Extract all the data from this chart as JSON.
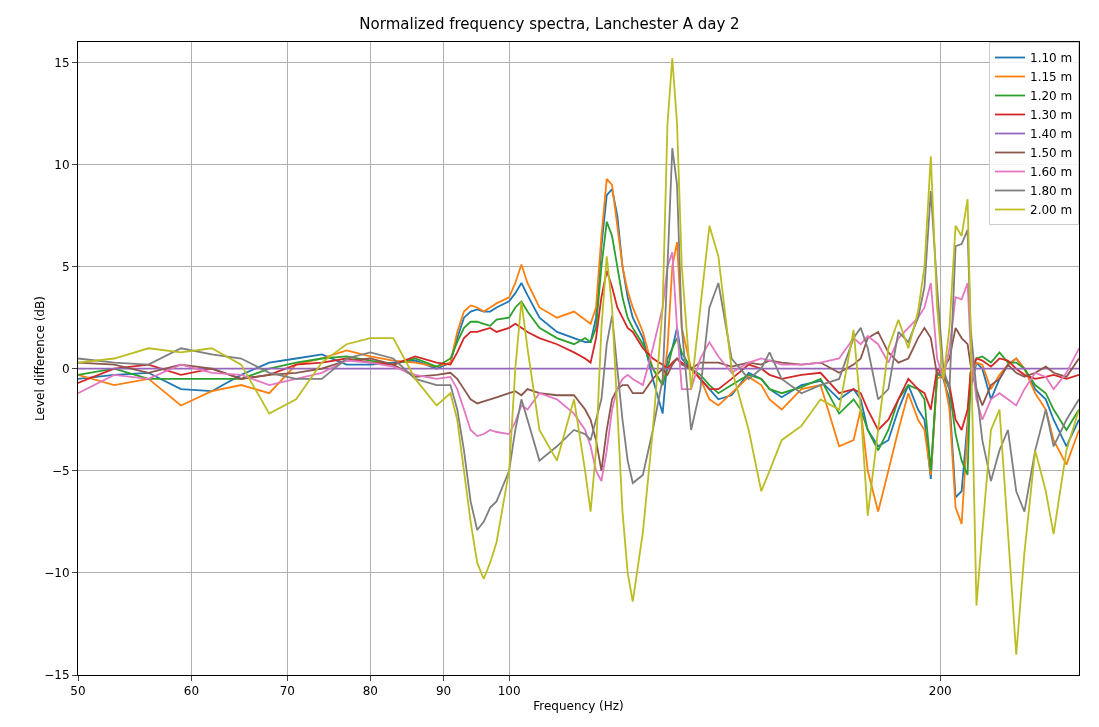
{
  "chart_data": {
    "type": "line",
    "title": "Normalized frequency spectra, Lanchester A day 2",
    "xlabel": "Frequency (Hz)",
    "ylabel": "Level difference (dB)",
    "x": [
      50,
      53,
      56,
      59,
      62,
      65,
      68,
      71,
      74,
      77,
      80,
      83,
      86,
      89,
      91,
      92,
      93,
      94,
      95,
      96,
      97,
      98,
      100,
      101,
      102,
      103,
      105,
      108,
      111,
      113,
      114,
      115,
      116,
      117,
      118,
      119,
      120,
      121,
      122,
      124,
      126,
      128,
      129,
      130,
      131,
      132,
      134,
      136,
      138,
      140,
      143,
      147,
      150,
      152,
      155,
      160,
      165,
      170,
      174,
      176,
      178,
      181,
      184,
      187,
      190,
      193,
      195,
      197,
      199,
      201,
      203,
      205,
      207,
      209,
      210,
      212,
      214,
      217,
      220,
      223,
      226,
      229,
      233,
      237,
      240,
      245,
      250
    ],
    "series": [
      {
        "name": "1.10 m",
        "color": "#1f77b4",
        "values": [
          -0.5,
          -0.3,
          -0.2,
          -1.0,
          -1.1,
          -0.3,
          0.3,
          0.5,
          0.7,
          0.2,
          0.2,
          0.3,
          0.4,
          0.0,
          0.3,
          1.5,
          2.5,
          2.8,
          2.9,
          2.8,
          2.8,
          3.0,
          3.3,
          3.7,
          4.2,
          3.6,
          2.5,
          1.8,
          1.5,
          1.3,
          1.3,
          2.5,
          6,
          8.5,
          8.8,
          7.5,
          5,
          3.5,
          2.5,
          1.5,
          -0.5,
          -2.2,
          0.5,
          1.0,
          2,
          0.5,
          0,
          -0.5,
          -1,
          -1.5,
          -1.3,
          -0.2,
          -0.5,
          -1.0,
          -1.4,
          -0.8,
          -0.6,
          -1.5,
          -1.0,
          -1.5,
          -3,
          -3.8,
          -3.5,
          -2.0,
          -0.8,
          -2.0,
          -2.5,
          -5.4,
          -0.2,
          -0.5,
          -1.5,
          -6.3,
          -6.0,
          -2.6,
          -1.0,
          0.3,
          0.0,
          -1.5,
          -0.5,
          0.2,
          0.5,
          0,
          -1.0,
          -1.5,
          -2.5,
          -3.8,
          -2.5
        ]
      },
      {
        "name": "1.15 m",
        "color": "#ff7f0e",
        "values": [
          -0.3,
          -0.8,
          -0.5,
          -1.8,
          -1.1,
          -0.8,
          -1.2,
          0.2,
          0.5,
          0.9,
          0.6,
          0.4,
          0.3,
          0.1,
          0.3,
          1.8,
          2.8,
          3.1,
          3.0,
          2.8,
          3.0,
          3.2,
          3.5,
          4.2,
          5.1,
          4.2,
          3.0,
          2.5,
          2.8,
          2.4,
          2.2,
          3,
          6.5,
          9.3,
          9.0,
          7,
          5,
          3.8,
          3.0,
          1.8,
          0,
          -0.8,
          1,
          5,
          6.2,
          2,
          0,
          -0.5,
          -1.5,
          -1.8,
          -1.2,
          -0.4,
          -0.8,
          -1.5,
          -2.0,
          -1.0,
          -0.8,
          -3.8,
          -3.5,
          -2,
          -5,
          -7,
          -5.0,
          -3,
          -1.2,
          -2.5,
          -3,
          -5.2,
          -0.5,
          -0.3,
          -2,
          -6.8,
          -7.6,
          -3,
          -0.3,
          0.3,
          0.2,
          -1.0,
          -0.3,
          0.2,
          0.5,
          0,
          -1.2,
          -2,
          -3.5,
          -4.7,
          -3.0
        ]
      },
      {
        "name": "1.20 m",
        "color": "#2ca02c",
        "values": [
          -0.3,
          0.0,
          -0.5,
          -0.5,
          -0.5,
          -0.5,
          0.0,
          0.3,
          0.5,
          0.6,
          0.4,
          0.2,
          0.5,
          0.1,
          0.5,
          1.3,
          2.0,
          2.3,
          2.3,
          2.2,
          2.1,
          2.4,
          2.5,
          3.0,
          3.3,
          2.8,
          2.0,
          1.5,
          1.2,
          1.5,
          1.3,
          2,
          5,
          7.2,
          6.5,
          5,
          3.5,
          2.5,
          2,
          1.2,
          0,
          -0.8,
          0,
          1,
          1.5,
          0.8,
          0,
          -0.3,
          -0.8,
          -1.2,
          -0.8,
          -0.3,
          -0.5,
          -1,
          -1.2,
          -0.9,
          -0.5,
          -2.2,
          -1.5,
          -2,
          -3,
          -4,
          -3,
          -1.5,
          -0.8,
          -1.0,
          -1.5,
          -5.0,
          -0.3,
          -0.3,
          -1,
          -3.2,
          -4.5,
          -5.2,
          -0.2,
          0.5,
          0.6,
          0.3,
          0.8,
          0.3,
          0.3,
          0,
          -0.8,
          -1.2,
          -2.0,
          -3.0,
          -2.0
        ]
      },
      {
        "name": "1.30 m",
        "color": "#d62728",
        "values": [
          -0.7,
          0,
          0.2,
          -0.3,
          0,
          -0.5,
          -0.3,
          0.2,
          0.3,
          0.5,
          0.3,
          0.2,
          0.6,
          0.3,
          0.2,
          0.8,
          1.5,
          1.8,
          1.8,
          1.9,
          2.0,
          1.8,
          2.0,
          2.2,
          2.0,
          1.8,
          1.5,
          1.2,
          0.8,
          0.5,
          0.3,
          1.5,
          3.5,
          4.8,
          4,
          3,
          2.5,
          2,
          1.8,
          1,
          0.5,
          0.2,
          0,
          0.3,
          0.5,
          0.3,
          0,
          -0.5,
          -1,
          -1.0,
          -0.5,
          0.2,
          0.0,
          -0.3,
          -0.5,
          -0.3,
          -0.2,
          -1.2,
          -1,
          -1.2,
          -2,
          -3,
          -2.5,
          -1.5,
          -0.5,
          -1.0,
          -1.2,
          -2.0,
          0,
          -0.3,
          -0.8,
          -2.5,
          -3.0,
          -2.0,
          -0.2,
          0.5,
          0.4,
          0.1,
          0.5,
          0.4,
          0.0,
          -0.3,
          -0.5,
          -0.4,
          -0.3,
          -0.5,
          -0.3
        ]
      },
      {
        "name": "1.40 m",
        "color": "#9467bd",
        "values": [
          0,
          0,
          0,
          0,
          0,
          0,
          0,
          0,
          0,
          0,
          0,
          0,
          0,
          0,
          0,
          0,
          0,
          0,
          0,
          0,
          0,
          0,
          0,
          0,
          0,
          0,
          0,
          0,
          0,
          0,
          0,
          0,
          0,
          0,
          0,
          0,
          0,
          0,
          0,
          0,
          0,
          0,
          0,
          0,
          0,
          0,
          0,
          0,
          0,
          0,
          0,
          0,
          0,
          0,
          0,
          0,
          0,
          0,
          0,
          0,
          0,
          0,
          0,
          0,
          0,
          0,
          0,
          0,
          0,
          0,
          0,
          0,
          0,
          0,
          0,
          0,
          0,
          0,
          0,
          0,
          0,
          0,
          0,
          0,
          0,
          0,
          0
        ]
      },
      {
        "name": "1.50 m",
        "color": "#8c564b",
        "values": [
          0.3,
          0.2,
          -0.2,
          0.2,
          0,
          -0.5,
          -0.3,
          -0.2,
          0,
          0.4,
          0.5,
          0.2,
          -0.4,
          -0.3,
          -0.2,
          -0.5,
          -1.0,
          -1.5,
          -1.7,
          -1.6,
          -1.5,
          -1.4,
          -1.2,
          -1.1,
          -1.3,
          -1.0,
          -1.2,
          -1.3,
          -1.3,
          -2,
          -2.5,
          -3.5,
          -5,
          -3,
          -1.5,
          -1,
          -0.8,
          -0.8,
          -1.2,
          -1.2,
          -0.5,
          0,
          -0.3,
          0.2,
          0.5,
          0.2,
          0,
          0.3,
          0.3,
          0.3,
          0.1,
          0.3,
          0.2,
          0.4,
          0.3,
          0.2,
          0.3,
          -0.2,
          0.2,
          0.5,
          1.5,
          1.8,
          0.8,
          0.3,
          0.5,
          1.5,
          2.0,
          1.5,
          -0.3,
          0,
          0.5,
          2.0,
          1.5,
          1.2,
          0.2,
          -1,
          -1.8,
          -0.8,
          -0.5,
          0.2,
          -0.2,
          -0.4,
          -0.2,
          0.1,
          -0.2,
          -0.4,
          0.5
        ]
      },
      {
        "name": "1.60 m",
        "color": "#e377c2",
        "values": [
          -1.2,
          -0.3,
          -0.5,
          0.2,
          -0.2,
          -0.3,
          -0.8,
          -0.5,
          -0.2,
          0.4,
          0.3,
          0.1,
          -0.3,
          -0.5,
          -0.4,
          -1.0,
          -2.0,
          -3.0,
          -3.3,
          -3.2,
          -3.0,
          -3.1,
          -3.2,
          -2.6,
          -1.8,
          -2.0,
          -1.2,
          -1.5,
          -2.2,
          -3.0,
          -3.8,
          -5,
          -5.5,
          -4,
          -2,
          -1,
          -0.5,
          -0.3,
          -0.5,
          -0.8,
          1,
          3,
          5,
          5.7,
          2,
          -1,
          -1,
          0.5,
          1.3,
          0.6,
          -0.2,
          0.3,
          0.5,
          0.4,
          0.2,
          0.2,
          0.3,
          0.5,
          1.5,
          1.2,
          1.6,
          1.2,
          0.3,
          1.5,
          2,
          2.5,
          3,
          4.2,
          0.5,
          -0.5,
          1,
          3.5,
          3.4,
          4.2,
          1,
          -1.5,
          -2.5,
          -1.5,
          -1.2,
          -1.5,
          -1.8,
          -1.0,
          -0.2,
          -0.4,
          -1.0,
          -0.2,
          1.0
        ]
      },
      {
        "name": "1.80 m",
        "color": "#7f7f7f",
        "values": [
          0.5,
          0.3,
          0.2,
          1.0,
          0.7,
          0.5,
          -0.2,
          -0.5,
          -0.5,
          0.5,
          0.8,
          0.5,
          -0.5,
          -0.8,
          -0.8,
          -2,
          -4,
          -6.5,
          -7.9,
          -7.5,
          -6.8,
          -6.5,
          -5.0,
          -3,
          -1.5,
          -2.5,
          -4.5,
          -3.8,
          -3.0,
          -3.2,
          -3.5,
          -2.5,
          -1.5,
          1.2,
          2.6,
          0,
          -2.5,
          -4.5,
          -5.6,
          -5.2,
          -3,
          -0.5,
          5,
          10.8,
          9,
          2,
          -3,
          -1,
          3,
          4.2,
          0.5,
          -0.5,
          0,
          0.8,
          -0.5,
          -1.2,
          -0.8,
          -0.5,
          1.5,
          2,
          1,
          -1.5,
          -1,
          1.8,
          1.3,
          2.5,
          4,
          8.7,
          4,
          0,
          -1,
          6,
          6.1,
          6.8,
          2,
          -1,
          -3.5,
          -5.5,
          -4,
          -3,
          -6,
          -7,
          -4,
          -2,
          -3.8,
          -2.5,
          -1.5
        ]
      },
      {
        "name": "2.00 m",
        "color": "#bcbd22",
        "values": [
          0.3,
          0.5,
          1.0,
          0.8,
          1.0,
          0.2,
          -2.2,
          -1.5,
          0.3,
          1.2,
          1.5,
          1.5,
          -0.5,
          -1.8,
          -1.2,
          -2.5,
          -5,
          -7.5,
          -9.5,
          -10.3,
          -9.5,
          -8.5,
          -5,
          0,
          3.3,
          1,
          -3,
          -4.5,
          -1.5,
          -5,
          -7,
          -4,
          2,
          5.5,
          3,
          -2,
          -7,
          -10,
          -11.4,
          -8,
          -3,
          3,
          12,
          15.2,
          12,
          5,
          -1,
          3,
          7,
          5.5,
          0,
          -3,
          -6,
          -5,
          -3.5,
          -2.8,
          -1.5,
          -2,
          1.9,
          -2,
          -7.2,
          -3,
          1,
          2.4,
          1,
          2.8,
          5,
          10.4,
          3,
          -0.5,
          2,
          7,
          6.5,
          8.3,
          2,
          -11.6,
          -8,
          -3,
          -2,
          -8,
          -14,
          -9,
          -4,
          -6,
          -8.1,
          -4,
          -2
        ]
      }
    ],
    "xlim": [
      50,
      250
    ],
    "xticks": [
      50,
      60,
      70,
      80,
      90,
      100,
      200
    ],
    "log": "x",
    "ylim": [
      -15,
      16
    ],
    "yticks": [
      {
        "value": -15,
        "label": "−15"
      },
      {
        "value": -10,
        "label": "−10"
      },
      {
        "value": -5,
        "label": "−5"
      },
      0,
      5,
      10,
      15
    ],
    "grid": true,
    "legend": "top right",
    "line_style": "solid",
    "marker": "none"
  }
}
